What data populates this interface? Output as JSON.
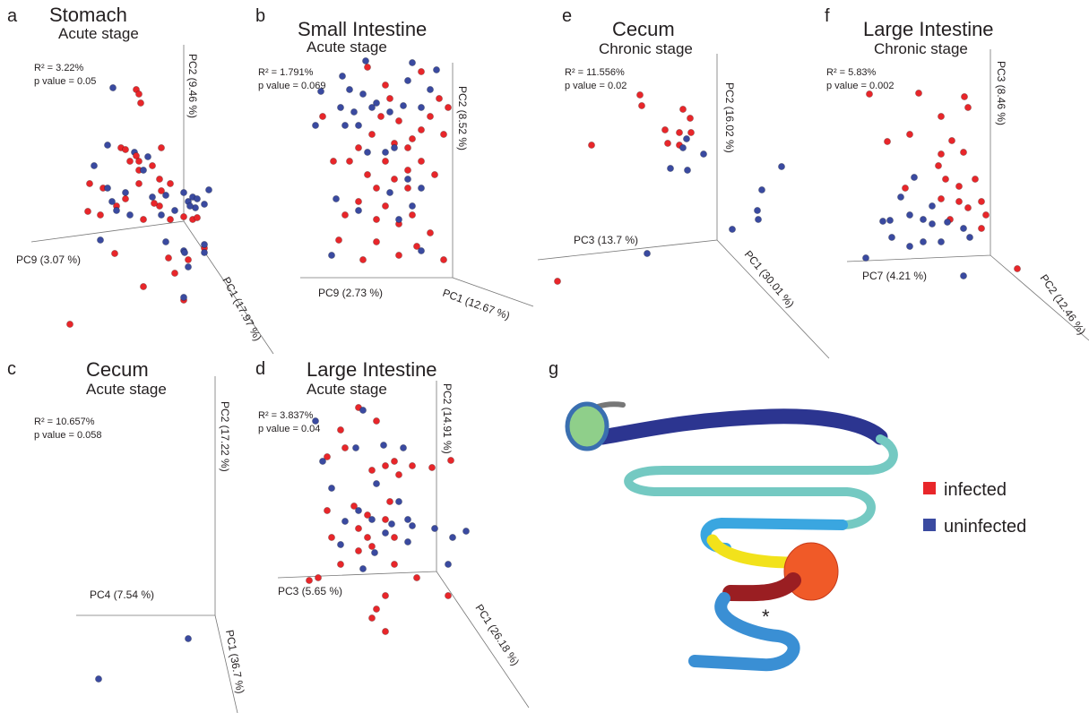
{
  "panels": [
    {
      "letter": "a",
      "title": "Stomach",
      "stage": "Acute stage",
      "r2": "R² = 3.22%",
      "p": "p value = 0.05",
      "axes": [
        "PC2 (9.46 %)",
        "PC9 (3.07 %)",
        "PC1 (17.97 %)"
      ]
    },
    {
      "letter": "b",
      "title": "Small Intestine",
      "stage": "Acute stage",
      "r2": "R² = 1.791%",
      "p": "p value = 0.069",
      "axes": [
        "PC2 (8.52 %)",
        "PC9 (2.73 %)",
        "PC1 (12.67 %)"
      ]
    },
    {
      "letter": "e",
      "title": "Cecum",
      "stage": "Chronic stage",
      "r2": "R² = 11.556%",
      "p": "p value = 0.02",
      "axes": [
        "PC2 (16.02 %)",
        "PC3 (13.7 %)",
        "PC1 (30.01 %)"
      ]
    },
    {
      "letter": "f",
      "title": "Large Intestine",
      "stage": "Chronic stage",
      "r2": "R² = 5.83%",
      "p": "p value = 0.002",
      "axes": [
        "PC3 (8.46 %)",
        "PC7 (4.21 %)",
        "PC2 (12.46 %)"
      ]
    },
    {
      "letter": "c",
      "title": "Cecum",
      "stage": "Acute stage",
      "r2": "R² = 10.657%",
      "p": "p value = 0.058",
      "axes": [
        "PC2 (17.22 %)",
        "PC4 (7.54 %)",
        "PC1 (36.7 %)"
      ]
    },
    {
      "letter": "d",
      "title": "Large Intestine",
      "stage": "Acute stage",
      "r2": "R² = 3.837%",
      "p": "p value = 0.04",
      "axes": [
        "PC2 (14.91 %)",
        "PC3 (5.65 %)",
        "PC1 (26.18 %)"
      ]
    }
  ],
  "panel_g": {
    "letter": "g",
    "annotation": "*"
  },
  "legend": [
    {
      "label": "infected",
      "color": "#e8262a"
    },
    {
      "label": "uninfected",
      "color": "#3a4aa0"
    }
  ]
}
